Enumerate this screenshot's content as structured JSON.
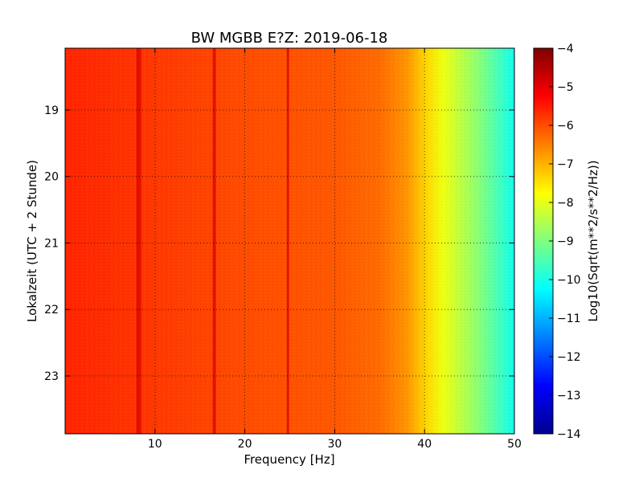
{
  "chart_data": {
    "type": "heatmap",
    "title": "BW MGBB E?Z: 2019-06-18",
    "xlabel": "Frequency [Hz]",
    "ylabel": "Lokalzeit (UTC + 2 Stunde)",
    "xlim": [
      0,
      50
    ],
    "ylim": [
      23.87,
      18.07
    ],
    "x_ticks": [
      10,
      20,
      30,
      40,
      50
    ],
    "x_tick_labels": [
      "10",
      "20",
      "30",
      "40",
      "50"
    ],
    "y_ticks": [
      19,
      20,
      21,
      22,
      23
    ],
    "y_tick_labels": [
      "19",
      "20",
      "21",
      "22",
      "23"
    ],
    "grid": true,
    "colormap": "jet",
    "colorbar": {
      "label": "Log10(Sqrt(m**2/s**2/Hz))",
      "range": [
        -14,
        -4
      ],
      "ticks": [
        -4,
        -5,
        -6,
        -7,
        -8,
        -9,
        -10,
        -11,
        -12,
        -13,
        -14
      ],
      "tick_labels": [
        "−4",
        "−5",
        "−6",
        "−7",
        "−8",
        "−9",
        "−10",
        "−11",
        "−12",
        "−13",
        "−14"
      ]
    },
    "spectrum_profile": {
      "frequency_hz": [
        0,
        5,
        10,
        20,
        30,
        35,
        38,
        40,
        42,
        44,
        46,
        48,
        50
      ],
      "log10_amplitude": [
        -5.6,
        -5.7,
        -5.8,
        -6.0,
        -6.1,
        -6.3,
        -6.7,
        -7.3,
        -7.9,
        -8.4,
        -8.9,
        -9.5,
        -10.1
      ]
    },
    "spectral_lines_hz": [
      8.2,
      16.6,
      24.8
    ],
    "colors": {
      "background": "#ffffff",
      "grid": "#000000"
    }
  }
}
